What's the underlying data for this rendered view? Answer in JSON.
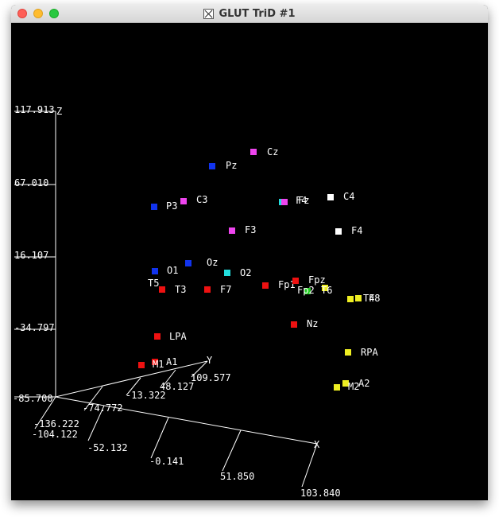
{
  "window": {
    "title": "GLUT TriD #1",
    "icon": "x11-icon",
    "controls": [
      "close-button",
      "minimize-button",
      "zoom-button"
    ]
  },
  "plot": {
    "background": "#000000",
    "axis_color": "#ffffff",
    "z_axis": {
      "label": "Z",
      "ticks": [
        "117.913",
        "67.010",
        "16.107",
        "-34.797",
        "-85.700"
      ]
    },
    "y_axis": {
      "label": "Y",
      "ticks": [
        "-136.222",
        "-74.772",
        "-13.322",
        "48.127",
        "109.577"
      ]
    },
    "x_axis": {
      "label": "X",
      "ticks": [
        "-104.122",
        "-52.132",
        "-0.141",
        "51.850",
        "103.840"
      ]
    },
    "colors": {
      "red": "#ee1111",
      "blue": "#1133ee",
      "magenta": "#ee44ee",
      "cyan": "#22dddd",
      "white": "#ffffff",
      "yellow": "#eeee22",
      "green": "#22cc22"
    },
    "electrodes": [
      {
        "name": "Cz",
        "color": "magenta"
      },
      {
        "name": "Pz",
        "color": "blue"
      },
      {
        "name": "C3",
        "color": "magenta"
      },
      {
        "name": "P3",
        "color": "blue"
      },
      {
        "name": "F4",
        "color": "cyan"
      },
      {
        "name": "Fz",
        "color": "magenta"
      },
      {
        "name": "C4",
        "color": "white"
      },
      {
        "name": "F3",
        "color": "magenta"
      },
      {
        "name": "F4",
        "color": "white"
      },
      {
        "name": "O1",
        "color": "blue"
      },
      {
        "name": "Oz",
        "color": "blue"
      },
      {
        "name": "O2",
        "color": "cyan"
      },
      {
        "name": "T5",
        "color": "red"
      },
      {
        "name": "T3",
        "color": "red"
      },
      {
        "name": "F7",
        "color": "red"
      },
      {
        "name": "Fp1",
        "color": "red"
      },
      {
        "name": "Fpz",
        "color": "red"
      },
      {
        "name": "Fp2",
        "color": "green"
      },
      {
        "name": "T6",
        "color": "yellow"
      },
      {
        "name": "T4",
        "color": "yellow"
      },
      {
        "name": "F8",
        "color": "yellow"
      },
      {
        "name": "Nz",
        "color": "red"
      },
      {
        "name": "LPA",
        "color": "red"
      },
      {
        "name": "A1",
        "color": "red"
      },
      {
        "name": "M1",
        "color": "red"
      },
      {
        "name": "RPA",
        "color": "yellow"
      },
      {
        "name": "A2",
        "color": "yellow"
      },
      {
        "name": "M2",
        "color": "yellow"
      }
    ]
  }
}
